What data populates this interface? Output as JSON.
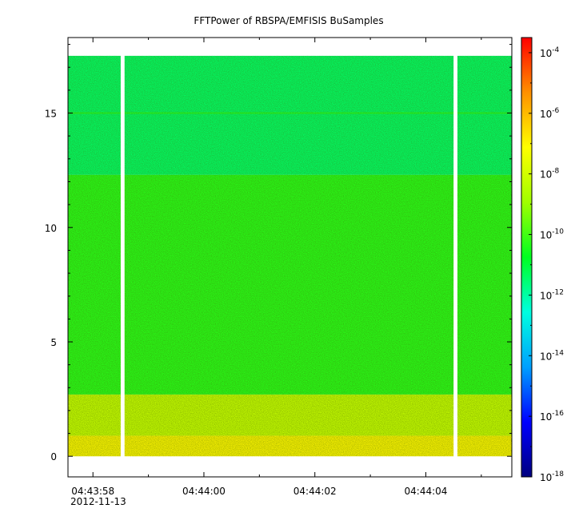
{
  "chart_data": {
    "type": "heatmap",
    "title": "FFTPower of RBSPA/EMFISIS  BuSamples",
    "x_axis": {
      "type": "time",
      "start": "04:43:57.55",
      "end": "04:44:05.55",
      "tick_labels": [
        "04:43:58",
        "04:44:00",
        "04:44:02",
        "04:44:04"
      ],
      "tick_values_s": [
        58,
        60,
        62,
        64
      ],
      "minor_ticks_s": [
        59,
        61,
        63,
        65
      ],
      "date_label": "2012-11-13"
    },
    "y_axis": {
      "range": [
        -0.9,
        18.3
      ],
      "ticks": [
        0,
        5,
        10,
        15
      ],
      "tick_labels": [
        "0",
        "5",
        "10",
        "15"
      ]
    },
    "data_extent": {
      "y": [
        0,
        17.5
      ],
      "x_start": "04:43:57.55",
      "x_end": "04:44:05.55"
    },
    "data_gaps": [
      {
        "start": "04:43:58.50",
        "end": "04:43:58.57"
      },
      {
        "start": "04:44:04.50",
        "end": "04:44:04.57"
      }
    ],
    "spectral_bands": [
      {
        "y_from": 0.0,
        "y_to": 0.9,
        "log10_power": -7.0
      },
      {
        "y_from": 0.9,
        "y_to": 2.7,
        "log10_power": -8.2
      },
      {
        "y_from": 2.7,
        "y_to": 12.3,
        "log10_power": -10.3
      },
      {
        "y_from": 12.3,
        "y_to": 17.5,
        "log10_power": -11.4
      }
    ],
    "spectral_lines": [
      {
        "y": 15.0,
        "log10_power": -10.3
      }
    ],
    "colorbar": {
      "scale": "log",
      "range_exp": [
        -18,
        -3.5
      ],
      "tick_exponents": [
        -4,
        -6,
        -8,
        -10,
        -12,
        -14,
        -16,
        -18
      ],
      "tick_base": "10",
      "colormap": [
        "#00007f",
        "#0000ff",
        "#00a0ff",
        "#00ffe0",
        "#00ff20",
        "#a0ff00",
        "#ffff00",
        "#ff9000",
        "#ff0000"
      ]
    }
  }
}
